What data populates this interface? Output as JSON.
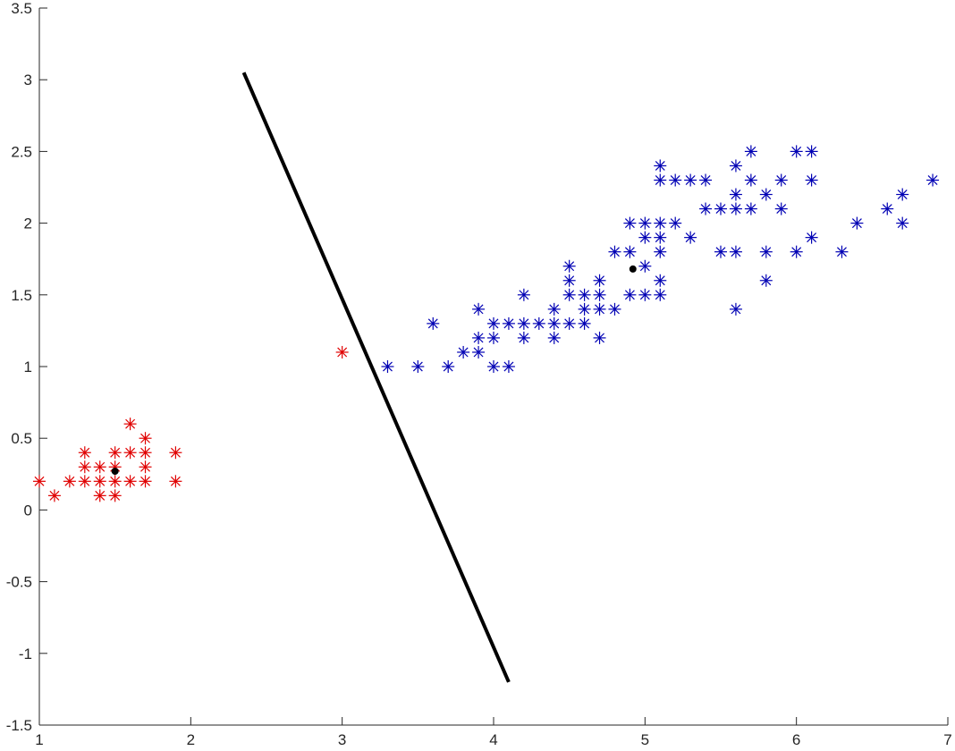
{
  "chart_data": {
    "type": "scatter",
    "title": "",
    "xlabel": "",
    "ylabel": "",
    "xlim": [
      1,
      7
    ],
    "ylim": [
      -1.5,
      3.5
    ],
    "grid": false,
    "legend": "none",
    "x_ticks": [
      "1",
      "2",
      "3",
      "4",
      "5",
      "6",
      "7"
    ],
    "y_ticks": [
      "-1.5",
      "-1",
      "-0.5",
      "0",
      "0.5",
      "1",
      "1.5",
      "2",
      "2.5",
      "3",
      "3.5"
    ],
    "series": [
      {
        "marker": "asterisk",
        "color": "#e00000",
        "points": [
          [
            1.0,
            0.2
          ],
          [
            1.1,
            0.1
          ],
          [
            1.2,
            0.2
          ],
          [
            1.3,
            0.2
          ],
          [
            1.3,
            0.3
          ],
          [
            1.3,
            0.4
          ],
          [
            1.4,
            0.1
          ],
          [
            1.4,
            0.2
          ],
          [
            1.4,
            0.3
          ],
          [
            1.5,
            0.1
          ],
          [
            1.5,
            0.2
          ],
          [
            1.5,
            0.3
          ],
          [
            1.5,
            0.4
          ],
          [
            1.6,
            0.2
          ],
          [
            1.6,
            0.4
          ],
          [
            1.6,
            0.6
          ],
          [
            1.7,
            0.2
          ],
          [
            1.7,
            0.3
          ],
          [
            1.7,
            0.4
          ],
          [
            1.7,
            0.5
          ],
          [
            1.9,
            0.2
          ],
          [
            1.9,
            0.4
          ],
          [
            3.0,
            1.1
          ]
        ]
      },
      {
        "marker": "asterisk",
        "color": "#0000b4",
        "points": [
          [
            3.3,
            1.0
          ],
          [
            3.5,
            1.0
          ],
          [
            3.6,
            1.3
          ],
          [
            3.7,
            1.0
          ],
          [
            3.8,
            1.1
          ],
          [
            3.9,
            1.1
          ],
          [
            3.9,
            1.2
          ],
          [
            3.9,
            1.4
          ],
          [
            4.0,
            1.0
          ],
          [
            4.0,
            1.2
          ],
          [
            4.0,
            1.3
          ],
          [
            4.1,
            1.0
          ],
          [
            4.1,
            1.3
          ],
          [
            4.2,
            1.2
          ],
          [
            4.2,
            1.3
          ],
          [
            4.2,
            1.5
          ],
          [
            4.3,
            1.3
          ],
          [
            4.4,
            1.2
          ],
          [
            4.4,
            1.3
          ],
          [
            4.4,
            1.4
          ],
          [
            4.5,
            1.3
          ],
          [
            4.5,
            1.5
          ],
          [
            4.5,
            1.6
          ],
          [
            4.5,
            1.7
          ],
          [
            4.6,
            1.3
          ],
          [
            4.6,
            1.4
          ],
          [
            4.6,
            1.5
          ],
          [
            4.7,
            1.2
          ],
          [
            4.7,
            1.4
          ],
          [
            4.7,
            1.5
          ],
          [
            4.7,
            1.6
          ],
          [
            4.8,
            1.4
          ],
          [
            4.8,
            1.8
          ],
          [
            4.9,
            1.5
          ],
          [
            4.9,
            1.8
          ],
          [
            4.9,
            2.0
          ],
          [
            5.0,
            1.5
          ],
          [
            5.0,
            1.7
          ],
          [
            5.0,
            1.9
          ],
          [
            5.0,
            2.0
          ],
          [
            5.1,
            1.5
          ],
          [
            5.1,
            1.6
          ],
          [
            5.1,
            1.8
          ],
          [
            5.1,
            1.9
          ],
          [
            5.1,
            2.0
          ],
          [
            5.1,
            2.3
          ],
          [
            5.1,
            2.4
          ],
          [
            5.2,
            2.0
          ],
          [
            5.2,
            2.3
          ],
          [
            5.3,
            1.9
          ],
          [
            5.3,
            2.3
          ],
          [
            5.4,
            2.1
          ],
          [
            5.4,
            2.3
          ],
          [
            5.5,
            1.8
          ],
          [
            5.5,
            2.1
          ],
          [
            5.6,
            1.4
          ],
          [
            5.6,
            1.8
          ],
          [
            5.6,
            2.1
          ],
          [
            5.6,
            2.2
          ],
          [
            5.6,
            2.4
          ],
          [
            5.7,
            2.1
          ],
          [
            5.7,
            2.3
          ],
          [
            5.7,
            2.5
          ],
          [
            5.8,
            1.6
          ],
          [
            5.8,
            1.8
          ],
          [
            5.8,
            2.2
          ],
          [
            5.9,
            2.1
          ],
          [
            5.9,
            2.3
          ],
          [
            6.0,
            1.8
          ],
          [
            6.0,
            2.5
          ],
          [
            6.1,
            1.9
          ],
          [
            6.1,
            2.3
          ],
          [
            6.1,
            2.5
          ],
          [
            6.3,
            1.8
          ],
          [
            6.4,
            2.0
          ],
          [
            6.6,
            2.1
          ],
          [
            6.7,
            2.0
          ],
          [
            6.7,
            2.2
          ],
          [
            6.9,
            2.3
          ]
        ]
      },
      {
        "marker": "dot",
        "color": "#000000",
        "points": [
          [
            1.5,
            0.27
          ],
          [
            4.92,
            1.68
          ]
        ]
      }
    ],
    "line": {
      "color": "#000000",
      "points": [
        [
          2.35,
          3.05
        ],
        [
          4.1,
          -1.2
        ]
      ]
    }
  }
}
